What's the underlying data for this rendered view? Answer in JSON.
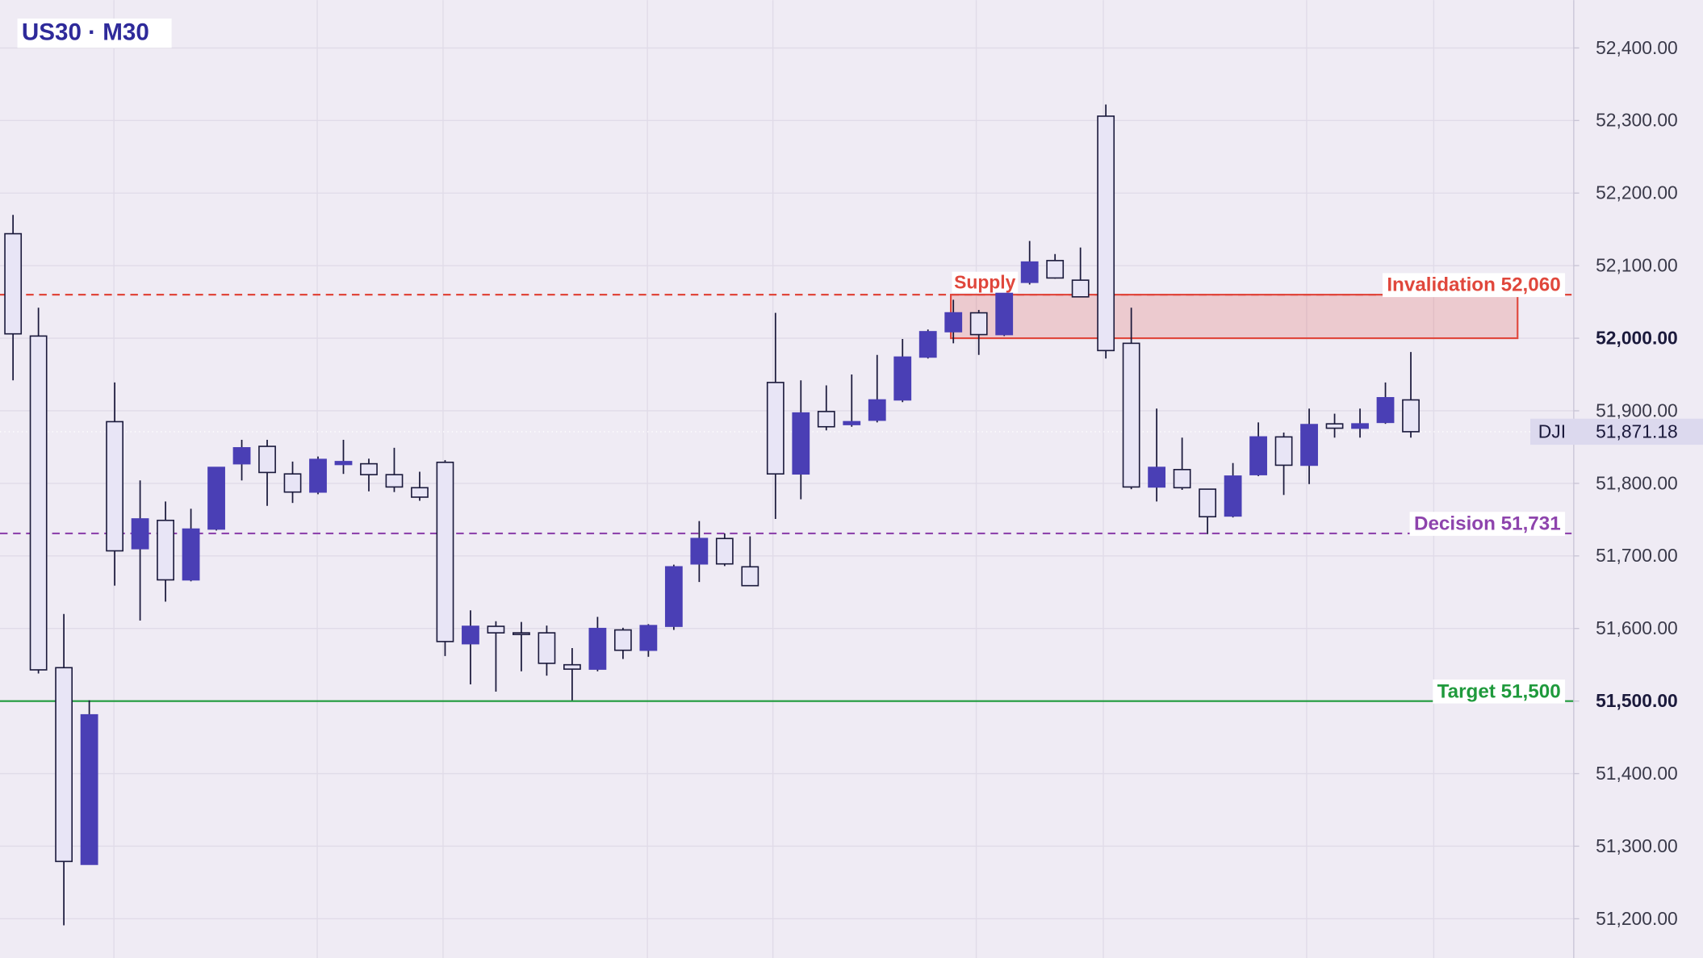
{
  "chart_data": {
    "type": "candlestick",
    "title": "US30 · M30",
    "ohlc": {
      "open": [
        52144,
        52003,
        51546,
        51275,
        51885,
        51710,
        51749,
        51667,
        51737,
        51827,
        51851,
        51813,
        51788,
        51826,
        51827,
        51812,
        51794,
        51829,
        51579,
        51603,
        51594,
        51594,
        51550,
        51544,
        51598,
        51570,
        51603,
        51689,
        51724,
        51685,
        51939,
        51813,
        51899,
        51881,
        51887,
        51915,
        51974,
        52009,
        52035,
        52005,
        52077,
        52107,
        52080,
        52306,
        51993,
        51795,
        51819,
        51792,
        51755,
        51812,
        51864,
        51825,
        51882,
        51876,
        51884,
        51915
      ],
      "high": [
        52170,
        52042,
        51620,
        51501,
        51939,
        51804,
        51775,
        51765,
        51822,
        51860,
        51860,
        51830,
        51837,
        51860,
        51834,
        51849,
        51816,
        51832,
        51625,
        51610,
        51609,
        51604,
        51573,
        51616,
        51601,
        51606,
        51688,
        51748,
        51731,
        51727,
        52035,
        51942,
        51935,
        51950,
        51977,
        51999,
        52012,
        52053,
        52039,
        52080,
        52134,
        52116,
        52125,
        52322,
        52042,
        51903,
        51863,
        51792,
        51828,
        51884,
        51870,
        51903,
        51896,
        51903,
        51939,
        51981
      ],
      "low": [
        51942,
        51538,
        51191,
        51275,
        51659,
        51611,
        51637,
        51665,
        51735,
        51804,
        51769,
        51773,
        51785,
        51813,
        51789,
        51788,
        51776,
        51562,
        51523,
        51513,
        51541,
        51535,
        51501,
        51541,
        51558,
        51561,
        51598,
        51664,
        51686,
        51659,
        51751,
        51778,
        51873,
        51878,
        51884,
        51912,
        51972,
        51993,
        51977,
        52003,
        52074,
        52082,
        52057,
        51972,
        51792,
        51775,
        51791,
        51730,
        51753,
        51810,
        51784,
        51799,
        51863,
        51863,
        51882,
        51863
      ],
      "close": [
        52006,
        51543,
        51279,
        51481,
        51707,
        51751,
        51667,
        51737,
        51822,
        51849,
        51815,
        51788,
        51833,
        51830,
        51812,
        51795,
        51781,
        51582,
        51603,
        51594,
        51593,
        51552,
        51544,
        51600,
        51570,
        51604,
        51685,
        51724,
        51689,
        51659,
        51813,
        51897,
        51878,
        51885,
        51915,
        51974,
        52009,
        52035,
        52005,
        52077,
        52105,
        52083,
        52057,
        51983,
        51795,
        51822,
        51794,
        51754,
        51810,
        51864,
        51825,
        51881,
        51876,
        51882,
        51918,
        51871.18
      ]
    },
    "up_color": "#4a3fb5",
    "down_color": "#e8e5f6",
    "outline_color": "#1b1a3c",
    "ylim": [
      51146,
      52466
    ],
    "yticks": [
      {
        "value": 51200,
        "label": "51,200.00"
      },
      {
        "value": 51300,
        "label": "51,300.00"
      },
      {
        "value": 51400,
        "label": "51,400.00"
      },
      {
        "value": 51500,
        "label": "51,500.00"
      },
      {
        "value": 51600,
        "label": "51,600.00"
      },
      {
        "value": 51700,
        "label": "51,700.00"
      },
      {
        "value": 51800,
        "label": "51,800.00"
      },
      {
        "value": 51900,
        "label": "51,900.00"
      },
      {
        "value": 52000,
        "label": "52,000.00"
      },
      {
        "value": 52100,
        "label": "52,100.00"
      },
      {
        "value": 52200,
        "label": "52,200.00"
      },
      {
        "value": 52300,
        "label": "52,300.00"
      },
      {
        "value": 52400,
        "label": "52,400.00"
      }
    ],
    "bold_ticks": [
      52000,
      51500
    ],
    "grid": true,
    "levels": [
      {
        "label": "Invalidation 52,060",
        "value": 52060,
        "color": "#e0473c",
        "dashed": true
      },
      {
        "label": "Decision 51,731",
        "value": 51731,
        "color": "#8e44ad",
        "dashed": true
      },
      {
        "label": "Target 51,500",
        "value": 51500,
        "color": "#1f9a3c",
        "dashed": false
      }
    ],
    "zone": {
      "label": "Supply",
      "low": 52000,
      "high": 52060,
      "color": "#e0473c"
    },
    "last_price": {
      "name": "DJI",
      "value": 51871.18,
      "label": "51,871.18"
    }
  }
}
